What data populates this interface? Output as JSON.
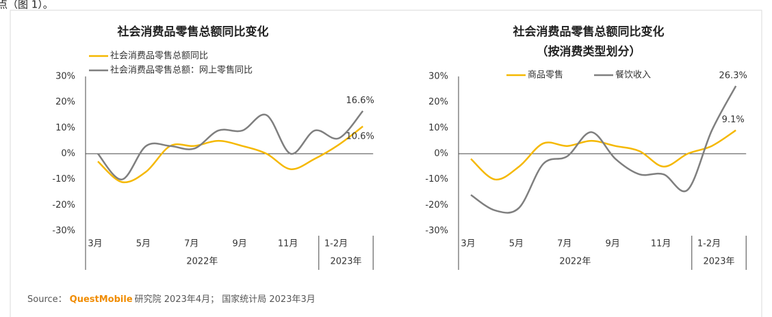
{
  "header": "点（图 1）。",
  "chart_data": [
    {
      "type": "line",
      "title": "社会消费品零售总额同比变化",
      "categories": [
        "3月",
        null,
        "5月",
        null,
        "7月",
        null,
        "9月",
        null,
        "11月",
        null,
        "1-2月",
        null
      ],
      "x_groups": [
        "2022年",
        "2023年"
      ],
      "ylim": [
        -30,
        30
      ],
      "yticks": [
        {
          "value": -30,
          "label": "-30%"
        },
        {
          "value": -20,
          "label": "-20%"
        },
        {
          "value": -10,
          "label": "-10%"
        },
        {
          "value": 0,
          "label": "0%"
        },
        {
          "value": 10,
          "label": "10%"
        },
        {
          "value": 20,
          "label": "20%"
        },
        {
          "value": 30,
          "label": "30%"
        }
      ],
      "legend": "top-left",
      "series": [
        {
          "name": "社会消费品零售总额同比",
          "color": "#f5b800",
          "values": [
            -3,
            -11,
            -7,
            3,
            3,
            5,
            3,
            0,
            -6,
            -2,
            3.5,
            10.6
          ],
          "value_labels": [
            null,
            null,
            null,
            null,
            null,
            null,
            null,
            null,
            null,
            null,
            null,
            "10.6%"
          ]
        },
        {
          "name": "社会消费品零售总额：网上零售同比",
          "color": "#7f7f7f",
          "values": [
            0,
            -10,
            3,
            3,
            2,
            9,
            9,
            15,
            0,
            9,
            6,
            16.6
          ],
          "value_labels": [
            null,
            null,
            null,
            null,
            null,
            null,
            null,
            null,
            null,
            null,
            null,
            "16.6%"
          ]
        }
      ]
    },
    {
      "type": "line",
      "title": "社会消费品零售总额同比变化",
      "subtitle": "（按消费类型划分）",
      "categories": [
        "3月",
        null,
        "5月",
        null,
        "7月",
        null,
        "9月",
        null,
        "11月",
        null,
        "1-2月",
        null
      ],
      "x_groups": [
        "2022年",
        "2023年"
      ],
      "ylim": [
        -30,
        30
      ],
      "yticks": [
        {
          "value": -30,
          "label": "-30%"
        },
        {
          "value": -20,
          "label": "-20%"
        },
        {
          "value": -10,
          "label": "-10%"
        },
        {
          "value": 0,
          "label": "0%"
        },
        {
          "value": 10,
          "label": "10%"
        },
        {
          "value": 20,
          "label": "20%"
        },
        {
          "value": 30,
          "label": "30%"
        }
      ],
      "legend": "top",
      "series": [
        {
          "name": "商品零售",
          "color": "#f5b800",
          "values": [
            -2,
            -10,
            -5,
            4,
            3,
            5,
            3,
            1,
            -5,
            0,
            3,
            9.1
          ],
          "value_labels": [
            null,
            null,
            null,
            null,
            null,
            null,
            null,
            null,
            null,
            null,
            null,
            "9.1%"
          ]
        },
        {
          "name": "餐饮收入",
          "color": "#7f7f7f",
          "values": [
            -16,
            -22,
            -21,
            -4,
            -1,
            8.4,
            -2,
            -8,
            -8,
            -14,
            9,
            26.3
          ],
          "value_labels": [
            null,
            null,
            null,
            null,
            null,
            null,
            null,
            null,
            null,
            null,
            null,
            "26.3%"
          ]
        }
      ]
    }
  ],
  "source": {
    "prefix": "Source：",
    "brand": "QuestMobile",
    "text": "研究院 2023年4月； 国家统计局 2023年3月"
  }
}
